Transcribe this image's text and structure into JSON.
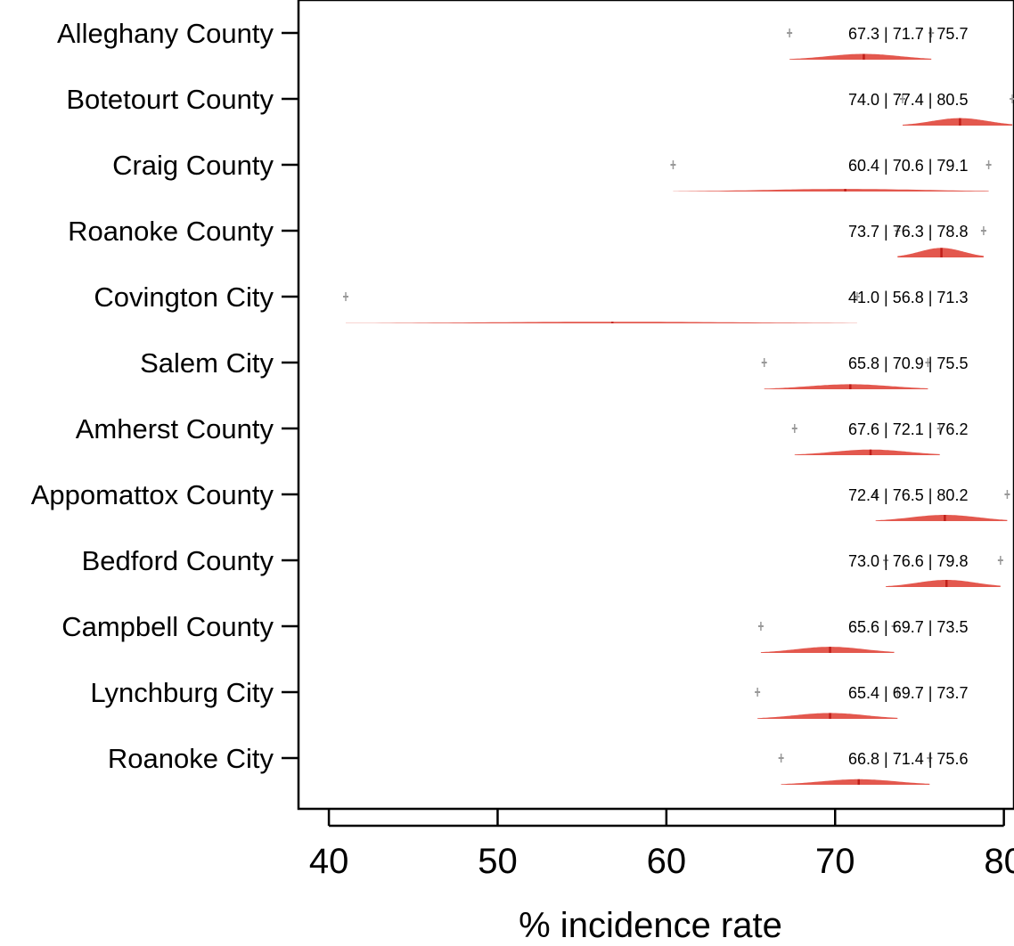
{
  "chart_data": {
    "type": "density-interval",
    "xlabel": "% incidence rate",
    "xlim": [
      38.2,
      80.6
    ],
    "xticks": [
      40,
      50,
      60,
      70,
      80
    ],
    "categories": [
      "Alleghany County",
      "Botetourt County",
      "Craig County",
      "Roanoke County",
      "Covington City",
      "Salem City",
      "Amherst County",
      "Appomattox County",
      "Bedford County",
      "Campbell County",
      "Lynchburg City",
      "Roanoke City"
    ],
    "lower": [
      67.3,
      74.0,
      60.4,
      73.7,
      41.0,
      65.8,
      67.6,
      72.4,
      73.0,
      65.6,
      65.4,
      66.8
    ],
    "median": [
      71.7,
      77.4,
      70.6,
      76.3,
      56.8,
      70.9,
      72.1,
      76.5,
      76.6,
      69.7,
      69.7,
      71.4
    ],
    "upper": [
      75.7,
      80.5,
      79.1,
      78.8,
      71.3,
      75.5,
      76.2,
      80.2,
      79.8,
      73.5,
      73.7,
      75.6
    ],
    "interval_labels": [
      "67.3 | 71.7 | 75.7",
      "74.0 | 77.4 | 80.5",
      "60.4 | 70.6 | 79.1",
      "73.7 | 76.3 | 78.8",
      "41.0 | 56.8 | 71.3",
      "65.8 | 70.9 | 75.5",
      "67.6 | 72.1 | 76.2",
      "72.4 | 76.5 | 80.2",
      "73.0 | 76.6 | 79.8",
      "65.6 | 69.7 | 73.5",
      "65.4 | 69.7 | 73.7",
      "66.8 | 71.4 | 75.6"
    ],
    "colors": {
      "density_fill": "#e3584e",
      "median_line": "#c0201a",
      "whisker": "#999999",
      "axis": "#000000"
    }
  }
}
